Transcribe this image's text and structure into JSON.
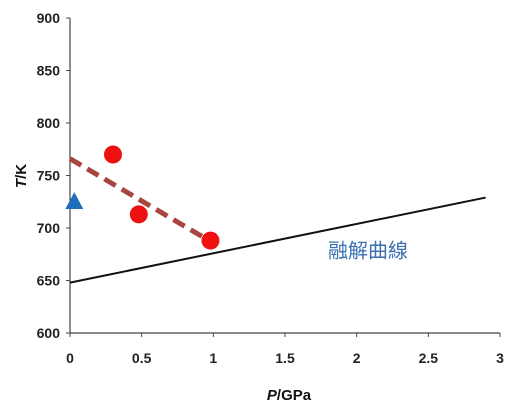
{
  "chart_data": {
    "type": "scatter",
    "xlabel_italic": "P",
    "xlabel_unit": "/GPa",
    "ylabel_italic": "T",
    "ylabel_unit": "/K",
    "xlim": [
      0,
      3
    ],
    "ylim": [
      600,
      900
    ],
    "x_ticks": [
      "0",
      "0.5",
      "1",
      "1.5",
      "2",
      "2.5",
      "3"
    ],
    "y_ticks": [
      "600",
      "650",
      "700",
      "750",
      "800",
      "850",
      "900"
    ],
    "grid": false,
    "series": [
      {
        "marker": "circle",
        "color": "#ee1111",
        "x": [
          0.3,
          0.48,
          0.98
        ],
        "y": [
          770,
          713,
          688
        ]
      },
      {
        "marker": "triangle",
        "color": "#1f6fbf",
        "x": [
          0.03
        ],
        "y": [
          725
        ]
      }
    ],
    "lines": [
      {
        "style": "dashed",
        "color": "#a8453f",
        "x": [
          0,
          1.02
        ],
        "y": [
          766,
          684
        ]
      },
      {
        "style": "solid",
        "color": "#111111",
        "x": [
          0,
          2.9
        ],
        "y": [
          648,
          729
        ]
      }
    ],
    "annotations": [
      {
        "text": "融解曲線",
        "color": "#3a6fb0",
        "x": 1.8,
        "y": 672
      }
    ]
  }
}
